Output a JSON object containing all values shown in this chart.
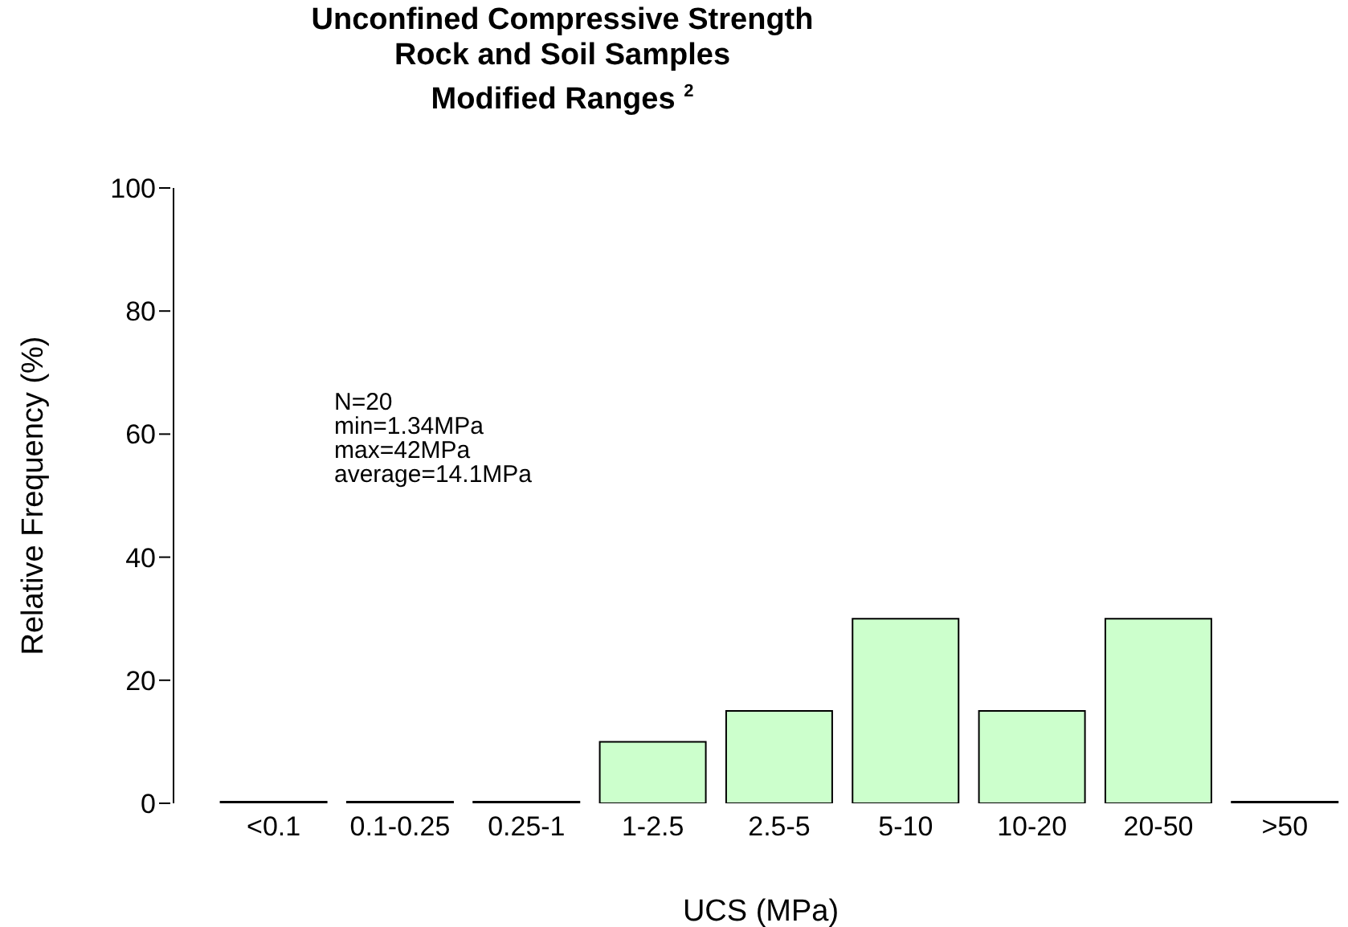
{
  "chart_data": {
    "type": "bar",
    "title": "Unconfined Compressive Strength\nRock and Soil Samples\nModified Ranges $^{2}$",
    "xlabel": "UCS (MPa)",
    "ylabel": "Relative Frequency (%)",
    "categories": [
      "<0.1",
      "0.1-0.25",
      "0.25-1",
      "1-2.5",
      "2.5-5",
      "5-10",
      "10-20",
      "20-50",
      ">50"
    ],
    "values": [
      0,
      0,
      0,
      10,
      15,
      30,
      15,
      30,
      0
    ],
    "color": "#ccffcc",
    "ylim": [
      0,
      100
    ],
    "yticks": [
      0,
      20,
      40,
      60,
      80,
      100
    ],
    "grid": false,
    "legend": false,
    "annotations": [
      "N=20\nmin=1.34MPa\nmax=42MPa\naverage=14.1MPa"
    ]
  }
}
